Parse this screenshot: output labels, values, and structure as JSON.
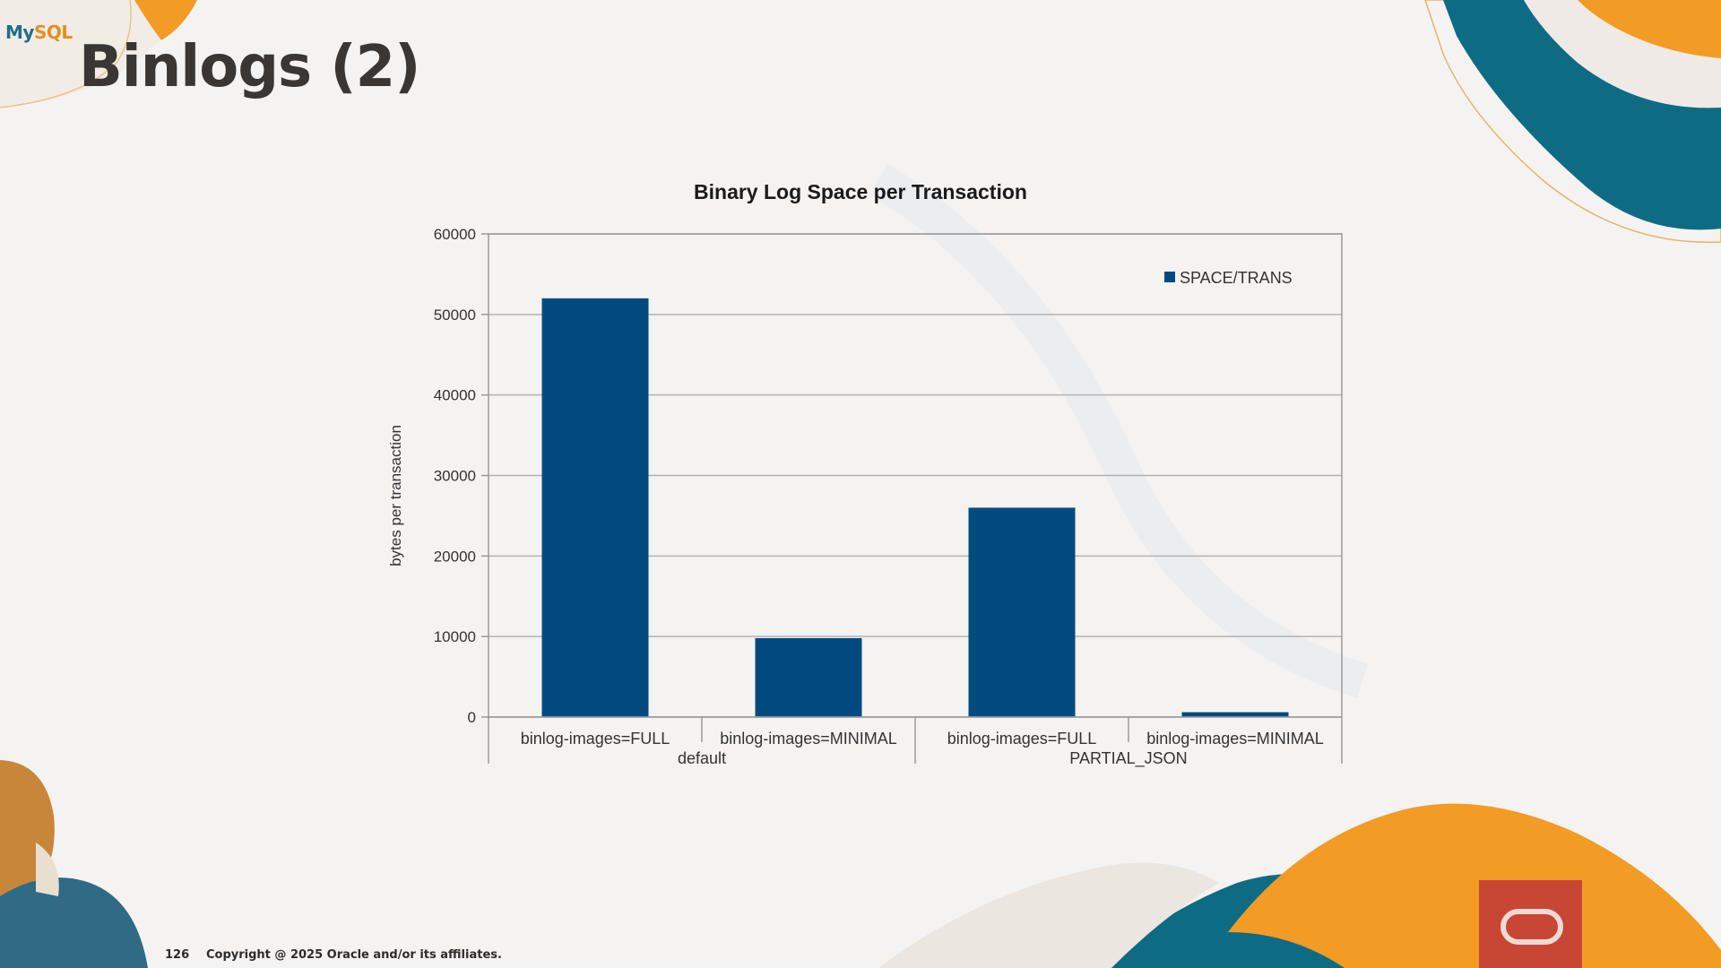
{
  "logo": {
    "part1": "My",
    "part2": "SQL"
  },
  "page": {
    "title": "Binlogs (2)"
  },
  "footer": {
    "page_number": "126",
    "copyright": "Copyright @ 2025 Oracle and/or its affiliates."
  },
  "colors": {
    "bar": "#004a80",
    "brand_teal": "#0e6b84",
    "brand_orange": "#f29b25",
    "oracle_red": "#c74634"
  },
  "chart_data": {
    "type": "bar",
    "title": "Binary Log Space per Transaction",
    "ylabel": "bytes per transaction",
    "xlabel": "",
    "ylim": [
      0,
      60000
    ],
    "yticks": [
      0,
      10000,
      20000,
      30000,
      40000,
      50000,
      60000
    ],
    "grid": true,
    "legend_position": "top-right",
    "categories": [
      "binlog-images=FULL",
      "binlog-images=MINIMAL",
      "binlog-images=FULL",
      "binlog-images=MINIMAL"
    ],
    "groups": [
      {
        "label": "default",
        "span": [
          0,
          1
        ]
      },
      {
        "label": "PARTIAL_JSON",
        "span": [
          2,
          3
        ]
      }
    ],
    "series": [
      {
        "name": "SPACE/TRANS",
        "values": [
          52000,
          9800,
          26000,
          600
        ]
      }
    ]
  }
}
